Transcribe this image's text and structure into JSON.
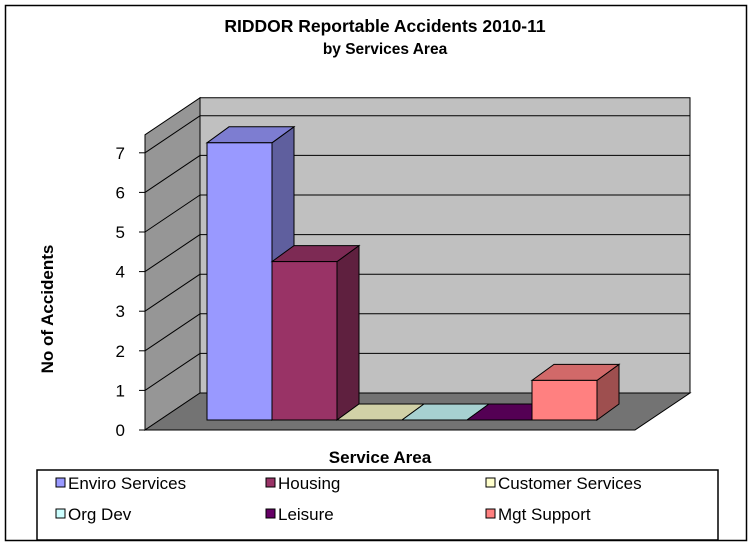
{
  "chart_data": {
    "type": "bar",
    "title": "RIDDOR Reportable Accidents 2010-11",
    "subtitle": "by Services Area",
    "xlabel": "Service Area",
    "ylabel": "No of Accidents",
    "ylim": [
      0,
      7
    ],
    "yticks": [
      "0",
      "1",
      "2",
      "3",
      "4",
      "5",
      "6",
      "7"
    ],
    "grid": true,
    "legend_position": "bottom",
    "series": [
      {
        "name": "Enviro Services",
        "value": 7,
        "color": "#9999FF"
      },
      {
        "name": "Housing",
        "value": 4,
        "color": "#993366"
      },
      {
        "name": "Customer Services",
        "value": 0,
        "color": "#FFFFCC"
      },
      {
        "name": "Org Dev",
        "value": 0,
        "color": "#CCFFFF"
      },
      {
        "name": "Leisure",
        "value": 0,
        "color": "#660066"
      },
      {
        "name": "Mgt Support",
        "value": 1,
        "color": "#FF8080"
      }
    ],
    "wall_color": "#C0C0C0"
  }
}
